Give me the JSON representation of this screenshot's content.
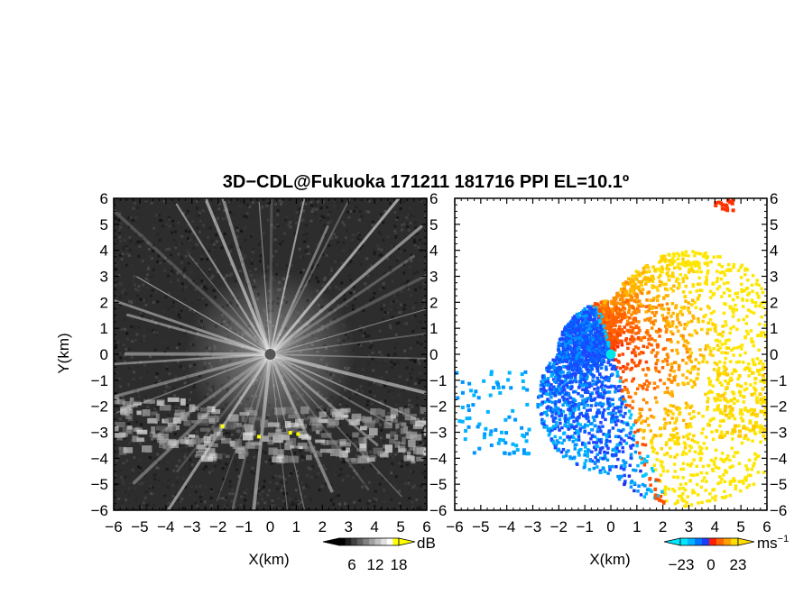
{
  "figure": {
    "title": "3D−CDL@Fukuoka 171211 181716 PPI EL=10.1º"
  },
  "chart_data": [
    {
      "type": "heatmap",
      "panel": "reflectivity",
      "xlabel": "X(km)",
      "ylabel": "Y(km)",
      "xlim": [
        -6,
        6
      ],
      "ylim": [
        -6,
        6
      ],
      "xticks": [
        "−6",
        "−5",
        "−4",
        "−3",
        "−2",
        "−1",
        "0",
        "1",
        "2",
        "3",
        "4",
        "5",
        "6"
      ],
      "yticks": [
        "6",
        "5",
        "4",
        "3",
        "2",
        "1",
        "0",
        "−1",
        "−2",
        "−3",
        "−4",
        "−5",
        "−6"
      ],
      "colorbar": {
        "unit": "dB",
        "ticks": [
          "6",
          "12",
          "18"
        ],
        "colors": [
          "#000000",
          "#202020",
          "#404040",
          "#606060",
          "#808080",
          "#a0a0a0",
          "#c0c0c0",
          "#e0e0e0",
          "#ffffff",
          "#ffff00"
        ]
      },
      "features": {
        "center": [
          0,
          0
        ],
        "streak_count": 40,
        "cloud_band_y_km": [
          -4,
          -2
        ],
        "yellow_spots": [
          [
            -1.9,
            -2.7
          ],
          [
            0.7,
            -2.95
          ],
          [
            1.0,
            -3.0
          ],
          [
            -0.5,
            -3.1
          ]
        ]
      }
    },
    {
      "type": "heatmap",
      "panel": "doppler_velocity",
      "xlabel": "X(km)",
      "xlim": [
        -6,
        6
      ],
      "ylim": [
        -6,
        6
      ],
      "xticks": [
        "−6",
        "−5",
        "−4",
        "−3",
        "−2",
        "−1",
        "0",
        "1",
        "2",
        "3",
        "4",
        "5",
        "6"
      ],
      "yticks": [
        "6",
        "5",
        "4",
        "3",
        "2",
        "1",
        "0",
        "−1",
        "−2",
        "−3",
        "−4",
        "−5",
        "−6"
      ],
      "colorbar": {
        "unit": "ms",
        "unit_sup": "−1",
        "ticks": [
          "−23",
          "0",
          "23"
        ],
        "colors": [
          "#00e6ff",
          "#00b4ff",
          "#0078ff",
          "#1e3cff",
          "#ff1e00",
          "#ff6400",
          "#ffa000",
          "#ffdc00"
        ]
      },
      "features": {
        "center": [
          0,
          0
        ],
        "approaching_colour": "#0a5aff",
        "receding_colour": "#ff3200"
      }
    }
  ]
}
